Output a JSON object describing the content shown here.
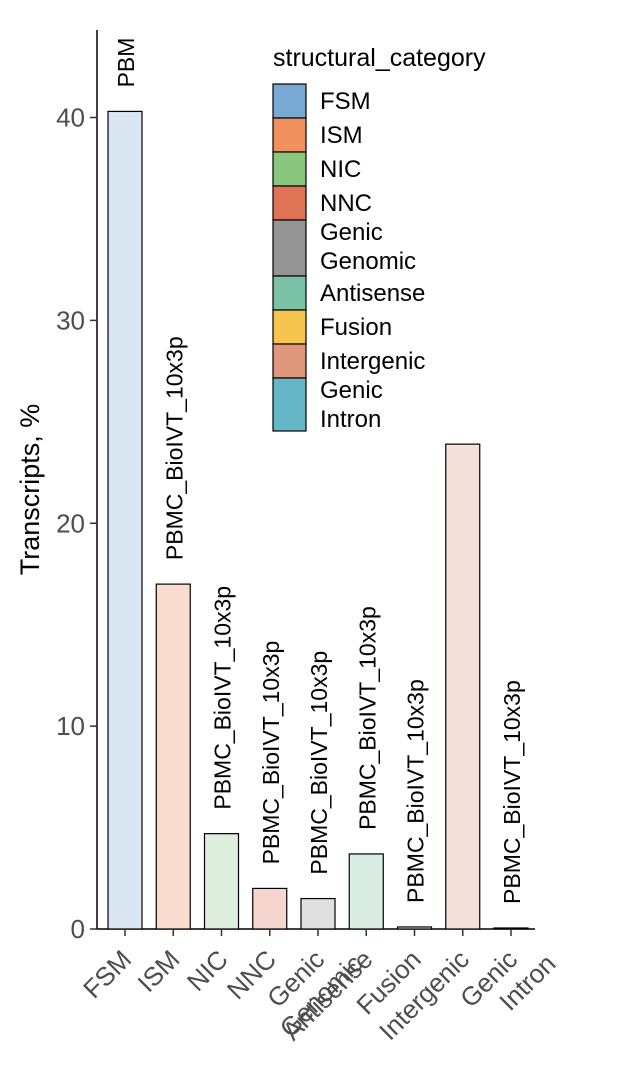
{
  "chart_data": {
    "type": "bar",
    "ylabel": "Transcripts, %",
    "ylim": [
      0,
      44
    ],
    "yticks": [
      0,
      10,
      20,
      30,
      40
    ],
    "categories": [
      "FSM",
      "ISM",
      "NIC",
      "NNC",
      "Genic\nGenomic",
      "Antisense",
      "Fusion",
      "Intergenic",
      "Genic\nIntron"
    ],
    "values": [
      40.3,
      17.0,
      4.7,
      2.0,
      1.5,
      3.7,
      0.1,
      23.9,
      0.05
    ],
    "bar_labels": [
      "PBM",
      "PBMC_BioIVT_10x3p",
      "PBMC_BioIVT_10x3p",
      "PBMC_BioIVT_10x3p",
      "PBMC_BioIVT_10x3p",
      "PBMC_BioIVT_10x3p",
      "PBMC_BioIVT_10x3p",
      "",
      "PBMC_BioIVT_10x3p"
    ],
    "colors": [
      "#dae6f1",
      "#f9dccf",
      "#ddeedd",
      "#f6d5cf",
      "#e0e0e0",
      "#d9ede4",
      "#fdf0d2",
      "#f4e1da",
      "#d9ecef"
    ],
    "legend": {
      "title": "structural_category",
      "position": "top-right",
      "items": [
        {
          "label": "FSM",
          "color": "#78a9d3"
        },
        {
          "label": "ISM",
          "color": "#f0915f"
        },
        {
          "label": "NIC",
          "color": "#8ac67e"
        },
        {
          "label": "NNC",
          "color": "#e07255"
        },
        {
          "label": "Genic\nGenomic",
          "color": "#959595"
        },
        {
          "label": "Antisense",
          "color": "#7cc2a6"
        },
        {
          "label": "Fusion",
          "color": "#f6c54f"
        },
        {
          "label": "Intergenic",
          "color": "#df987c"
        },
        {
          "label": "Genic\nIntron",
          "color": "#65b6c6"
        }
      ]
    },
    "grid": false
  }
}
